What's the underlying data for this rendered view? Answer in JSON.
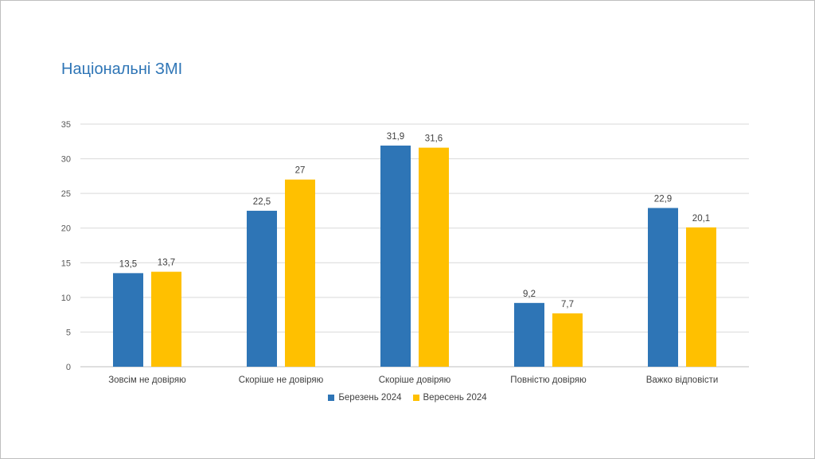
{
  "chart_data": {
    "type": "bar",
    "title": "Національні ЗМІ",
    "categories": [
      "Зовсім не довіряю",
      "Скоріше не довіряю",
      "Скоріше довіряю",
      "Повністю довіряю",
      "Важко відповісти"
    ],
    "series": [
      {
        "name": "Березень 2024",
        "color": "#2e75b6",
        "values": [
          13.5,
          22.5,
          31.9,
          9.2,
          22.9
        ],
        "labels": [
          "13,5",
          "22,5",
          "31,9",
          "9,2",
          "22,9"
        ]
      },
      {
        "name": "Вересень 2024",
        "color": "#ffc000",
        "values": [
          13.7,
          27,
          31.6,
          7.7,
          20.1
        ],
        "labels": [
          "13,7",
          "27",
          "31,6",
          "7,7",
          "20,1"
        ]
      }
    ],
    "ylim": [
      0,
      35
    ],
    "yticks": [
      0,
      5,
      10,
      15,
      20,
      25,
      30,
      35
    ],
    "grid": true,
    "legend_position": "bottom"
  }
}
